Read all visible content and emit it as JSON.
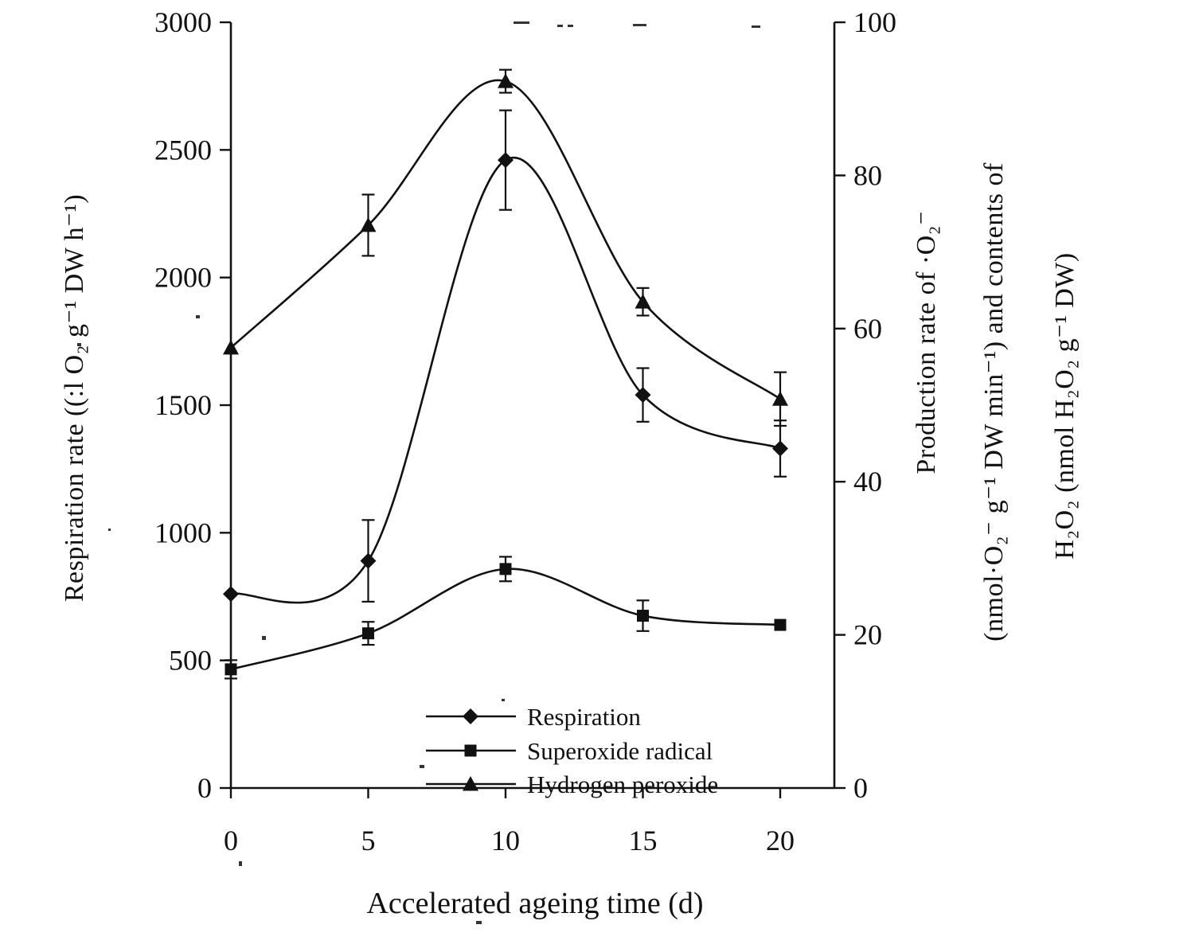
{
  "figure": {
    "background": "#ffffff",
    "ink_color": "#111111"
  },
  "chart_data": {
    "type": "line",
    "title": "",
    "xlabel": "Accelerated ageing time (d)",
    "x": [
      0,
      5,
      10,
      15,
      20
    ],
    "x_ticks": [
      "0",
      "5",
      "10",
      "15",
      "20"
    ],
    "x_range": [
      0,
      20
    ],
    "grid": "off",
    "left_axis": {
      "label": "Respiration rate ((:l O₂ g⁻¹ DW h⁻¹)",
      "ticks": [
        0,
        500,
        1000,
        1500,
        2000,
        2500,
        3000
      ],
      "range": [
        0,
        3000
      ]
    },
    "right_axis": {
      "label_lines": [
        "Production rate of ·O₂⁻",
        "(nmol·O₂⁻ g⁻¹ DW min⁻¹) and contents of",
        "H₂O₂ (nmol H₂O₂ g⁻¹ DW)"
      ],
      "ticks": [
        0,
        20,
        40,
        60,
        80,
        100
      ],
      "range": [
        0,
        100
      ]
    },
    "series": [
      {
        "name": "Respiration",
        "marker": "diamond",
        "axis": "left",
        "values": [
          760,
          890,
          2460,
          1540,
          1330
        ],
        "errors": [
          0,
          160,
          195,
          105,
          110
        ]
      },
      {
        "name": "Superoxide radical",
        "marker": "square",
        "axis": "right",
        "values": [
          15.5,
          20.2,
          28.6,
          22.5,
          21.3
        ],
        "errors": [
          1.2,
          1.5,
          1.6,
          2.0,
          0
        ]
      },
      {
        "name": "Hydrogen peroxide",
        "marker": "triangle",
        "axis": "right",
        "values": [
          57.5,
          73.5,
          92.3,
          63.5,
          50.8
        ],
        "errors": [
          0,
          4.0,
          1.5,
          1.8,
          3.5
        ]
      }
    ],
    "legend": {
      "position": "bottom-center-inside",
      "entries": [
        "Respiration",
        "Superoxide radical",
        "Hydrogen peroxide"
      ]
    }
  }
}
